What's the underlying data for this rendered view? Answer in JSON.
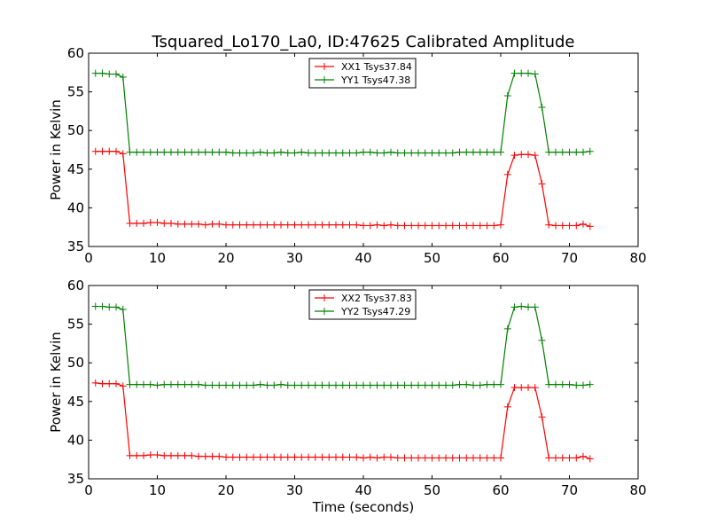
{
  "title": "Tsquared_Lo170_La0, ID:47625 Calibrated Amplitude",
  "chart_data": [
    {
      "type": "line",
      "title": "Tsquared_Lo170_La0, ID:47625 Calibrated Amplitude",
      "xlabel": "",
      "ylabel": "Power in Kelvin",
      "xlim": [
        0,
        80
      ],
      "ylim": [
        35,
        60
      ],
      "xticks": [
        0,
        10,
        20,
        30,
        40,
        50,
        60,
        70,
        80
      ],
      "yticks": [
        35,
        40,
        45,
        50,
        55,
        60
      ],
      "legend_position": "top-center",
      "grid": false,
      "x": [
        1,
        2,
        3,
        4,
        5,
        6,
        7,
        8,
        9,
        10,
        11,
        12,
        13,
        14,
        15,
        16,
        17,
        18,
        19,
        20,
        21,
        22,
        23,
        24,
        25,
        26,
        27,
        28,
        29,
        30,
        31,
        32,
        33,
        34,
        35,
        36,
        37,
        38,
        39,
        40,
        41,
        42,
        43,
        44,
        45,
        46,
        47,
        48,
        49,
        50,
        51,
        52,
        53,
        54,
        55,
        56,
        57,
        58,
        59,
        60,
        61,
        62,
        63,
        64,
        65,
        66,
        67,
        68,
        69,
        70,
        71,
        72,
        73
      ],
      "series": [
        {
          "name": "XX1 Tsys37.84",
          "color": "#ff0000",
          "values": [
            47.3,
            47.3,
            47.3,
            47.3,
            47.0,
            38.0,
            38.0,
            38.0,
            38.1,
            38.1,
            38.0,
            38.0,
            37.9,
            37.9,
            37.9,
            37.9,
            37.8,
            37.9,
            37.9,
            37.8,
            37.8,
            37.8,
            37.8,
            37.8,
            37.8,
            37.8,
            37.8,
            37.8,
            37.8,
            37.8,
            37.8,
            37.8,
            37.8,
            37.8,
            37.8,
            37.8,
            37.8,
            37.8,
            37.8,
            37.7,
            37.7,
            37.8,
            37.7,
            37.8,
            37.7,
            37.7,
            37.7,
            37.7,
            37.7,
            37.7,
            37.7,
            37.7,
            37.7,
            37.7,
            37.7,
            37.7,
            37.7,
            37.7,
            37.7,
            37.8,
            44.3,
            46.8,
            46.9,
            46.9,
            46.8,
            43.1,
            37.8,
            37.7,
            37.7,
            37.7,
            37.7,
            37.9,
            37.6
          ]
        },
        {
          "name": "YY1 Tsys47.38",
          "color": "#008000",
          "values": [
            57.4,
            57.4,
            57.3,
            57.3,
            56.9,
            47.2,
            47.2,
            47.2,
            47.2,
            47.2,
            47.2,
            47.2,
            47.2,
            47.2,
            47.2,
            47.2,
            47.2,
            47.2,
            47.2,
            47.2,
            47.1,
            47.1,
            47.1,
            47.1,
            47.2,
            47.1,
            47.1,
            47.2,
            47.1,
            47.1,
            47.2,
            47.1,
            47.1,
            47.1,
            47.1,
            47.1,
            47.1,
            47.1,
            47.1,
            47.2,
            47.2,
            47.1,
            47.1,
            47.2,
            47.1,
            47.1,
            47.1,
            47.1,
            47.1,
            47.1,
            47.1,
            47.1,
            47.1,
            47.2,
            47.2,
            47.2,
            47.2,
            47.2,
            47.2,
            47.2,
            54.5,
            57.4,
            57.4,
            57.4,
            57.3,
            53.0,
            47.2,
            47.2,
            47.2,
            47.2,
            47.2,
            47.2,
            47.3
          ]
        }
      ]
    },
    {
      "type": "line",
      "xlabel": "Time (seconds)",
      "ylabel": "Power in Kelvin",
      "xlim": [
        0,
        80
      ],
      "ylim": [
        35,
        60
      ],
      "xticks": [
        0,
        10,
        20,
        30,
        40,
        50,
        60,
        70,
        80
      ],
      "yticks": [
        35,
        40,
        45,
        50,
        55,
        60
      ],
      "legend_position": "top-center",
      "grid": false,
      "x": [
        1,
        2,
        3,
        4,
        5,
        6,
        7,
        8,
        9,
        10,
        11,
        12,
        13,
        14,
        15,
        16,
        17,
        18,
        19,
        20,
        21,
        22,
        23,
        24,
        25,
        26,
        27,
        28,
        29,
        30,
        31,
        32,
        33,
        34,
        35,
        36,
        37,
        38,
        39,
        40,
        41,
        42,
        43,
        44,
        45,
        46,
        47,
        48,
        49,
        50,
        51,
        52,
        53,
        54,
        55,
        56,
        57,
        58,
        59,
        60,
        61,
        62,
        63,
        64,
        65,
        66,
        67,
        68,
        69,
        70,
        71,
        72,
        73
      ],
      "series": [
        {
          "name": "XX2 Tsys37.83",
          "color": "#ff0000",
          "values": [
            47.4,
            47.3,
            47.3,
            47.3,
            47.0,
            38.0,
            38.0,
            38.0,
            38.1,
            38.1,
            38.0,
            38.0,
            38.0,
            38.0,
            38.0,
            37.9,
            37.9,
            37.9,
            37.9,
            37.8,
            37.8,
            37.8,
            37.8,
            37.8,
            37.8,
            37.8,
            37.8,
            37.8,
            37.8,
            37.8,
            37.8,
            37.8,
            37.8,
            37.8,
            37.8,
            37.8,
            37.8,
            37.8,
            37.8,
            37.7,
            37.8,
            37.7,
            37.8,
            37.8,
            37.7,
            37.7,
            37.7,
            37.7,
            37.7,
            37.7,
            37.7,
            37.7,
            37.7,
            37.7,
            37.7,
            37.7,
            37.7,
            37.7,
            37.7,
            37.7,
            44.3,
            46.8,
            46.8,
            46.8,
            46.8,
            43.0,
            37.7,
            37.7,
            37.7,
            37.7,
            37.7,
            37.9,
            37.6
          ]
        },
        {
          "name": "YY2 Tsys47.29",
          "color": "#008000",
          "values": [
            57.3,
            57.3,
            57.2,
            57.2,
            56.9,
            47.2,
            47.2,
            47.2,
            47.2,
            47.1,
            47.2,
            47.2,
            47.2,
            47.2,
            47.2,
            47.2,
            47.1,
            47.1,
            47.1,
            47.1,
            47.1,
            47.1,
            47.1,
            47.1,
            47.2,
            47.1,
            47.1,
            47.2,
            47.1,
            47.1,
            47.1,
            47.1,
            47.1,
            47.1,
            47.1,
            47.1,
            47.1,
            47.1,
            47.1,
            47.1,
            47.1,
            47.1,
            47.1,
            47.1,
            47.1,
            47.1,
            47.1,
            47.1,
            47.1,
            47.1,
            47.1,
            47.1,
            47.1,
            47.2,
            47.2,
            47.1,
            47.1,
            47.2,
            47.2,
            47.2,
            54.4,
            57.2,
            57.3,
            57.2,
            57.2,
            52.9,
            47.2,
            47.2,
            47.2,
            47.2,
            47.1,
            47.1,
            47.2
          ]
        }
      ]
    }
  ]
}
